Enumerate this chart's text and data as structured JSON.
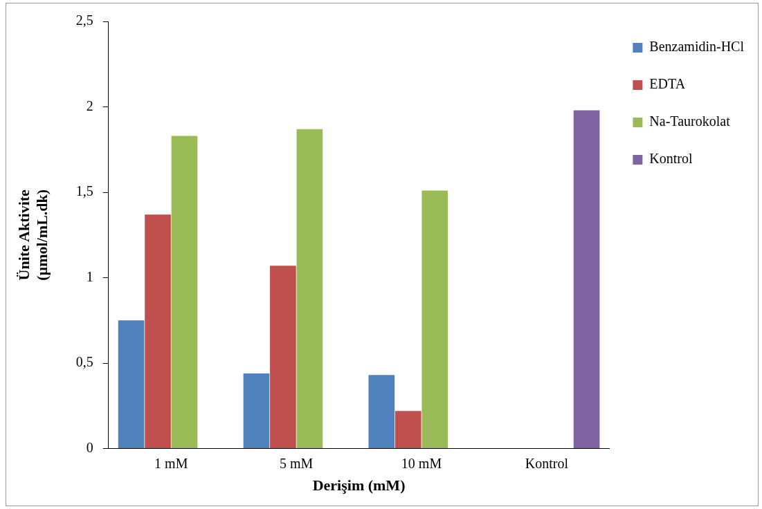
{
  "chart_data": {
    "type": "bar",
    "xlabel": "Derişim (mM)",
    "ylabel": "Ünite Aktivite\n(µmol/mL.dk)",
    "categories": [
      "1 mM",
      "5 mM",
      "10 mM",
      "Kontrol"
    ],
    "series": [
      {
        "name": "Benzamidin-HCl",
        "color": "#4f81bd",
        "values": [
          0.75,
          0.44,
          0.43,
          null
        ]
      },
      {
        "name": "EDTA",
        "color": "#c0504d",
        "values": [
          1.37,
          1.07,
          0.22,
          null
        ]
      },
      {
        "name": "Na-Taurokolat",
        "color": "#9bbb59",
        "values": [
          1.83,
          1.87,
          1.51,
          null
        ]
      },
      {
        "name": "Kontrol",
        "color": "#8064a2",
        "values": [
          null,
          null,
          null,
          1.98
        ]
      }
    ],
    "ylim": [
      0,
      2.5
    ],
    "yticks": [
      0,
      {
        "value": 0.5,
        "label": "0,5"
      },
      1,
      {
        "value": 1.5,
        "label": "1,5"
      },
      2,
      {
        "value": 2.5,
        "label": "2,5"
      }
    ],
    "grid": false,
    "legend": "right"
  }
}
